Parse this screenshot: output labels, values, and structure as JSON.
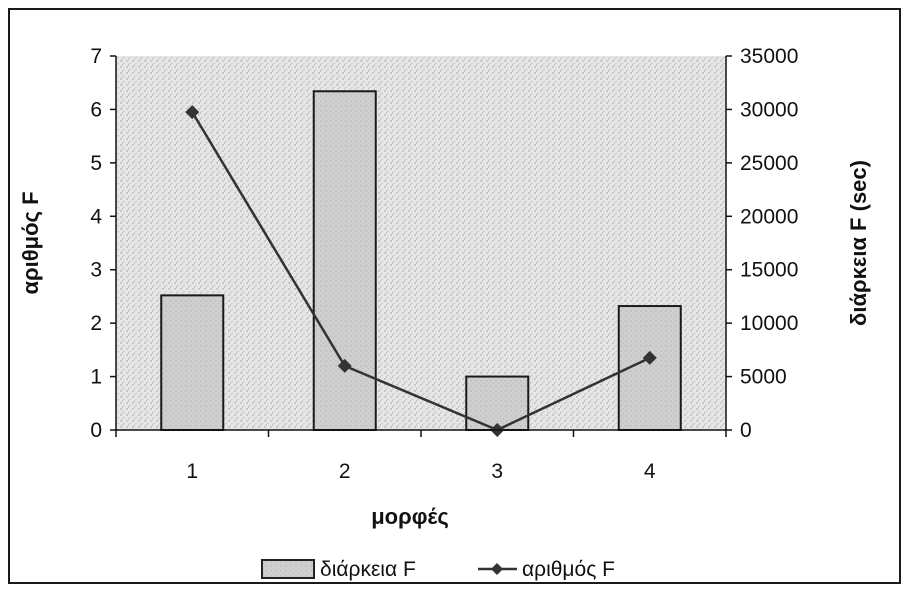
{
  "chart_data": {
    "type": "bar",
    "categories": [
      "1",
      "2",
      "3",
      "4"
    ],
    "xlabel": "μορφές",
    "series": [
      {
        "name": "διάρκεια F",
        "type": "bar",
        "axis": "right",
        "values": [
          12600,
          31700,
          5000,
          11600
        ],
        "color": "#c9c9c9"
      },
      {
        "name": "αριθμός F",
        "type": "line",
        "axis": "left",
        "values": [
          5.95,
          1.2,
          0.0,
          1.35
        ],
        "color": "#333333",
        "marker": "diamond"
      }
    ],
    "y_left": {
      "label": "αριθμός F",
      "ylim": [
        0,
        7
      ],
      "ticks": [
        "0",
        "1",
        "2",
        "3",
        "4",
        "5",
        "6",
        "7"
      ]
    },
    "y_right": {
      "label": "διάρκεια F (sec)",
      "ylim": [
        0,
        35000
      ],
      "ticks": [
        "0",
        "5000",
        "10000",
        "15000",
        "20000",
        "25000",
        "30000",
        "35000"
      ]
    },
    "grid": false,
    "plot_background": "#e4e4e4",
    "legend": {
      "placement": "bottom",
      "entries": [
        "διάρκεια F",
        "αριθμός F"
      ]
    }
  }
}
